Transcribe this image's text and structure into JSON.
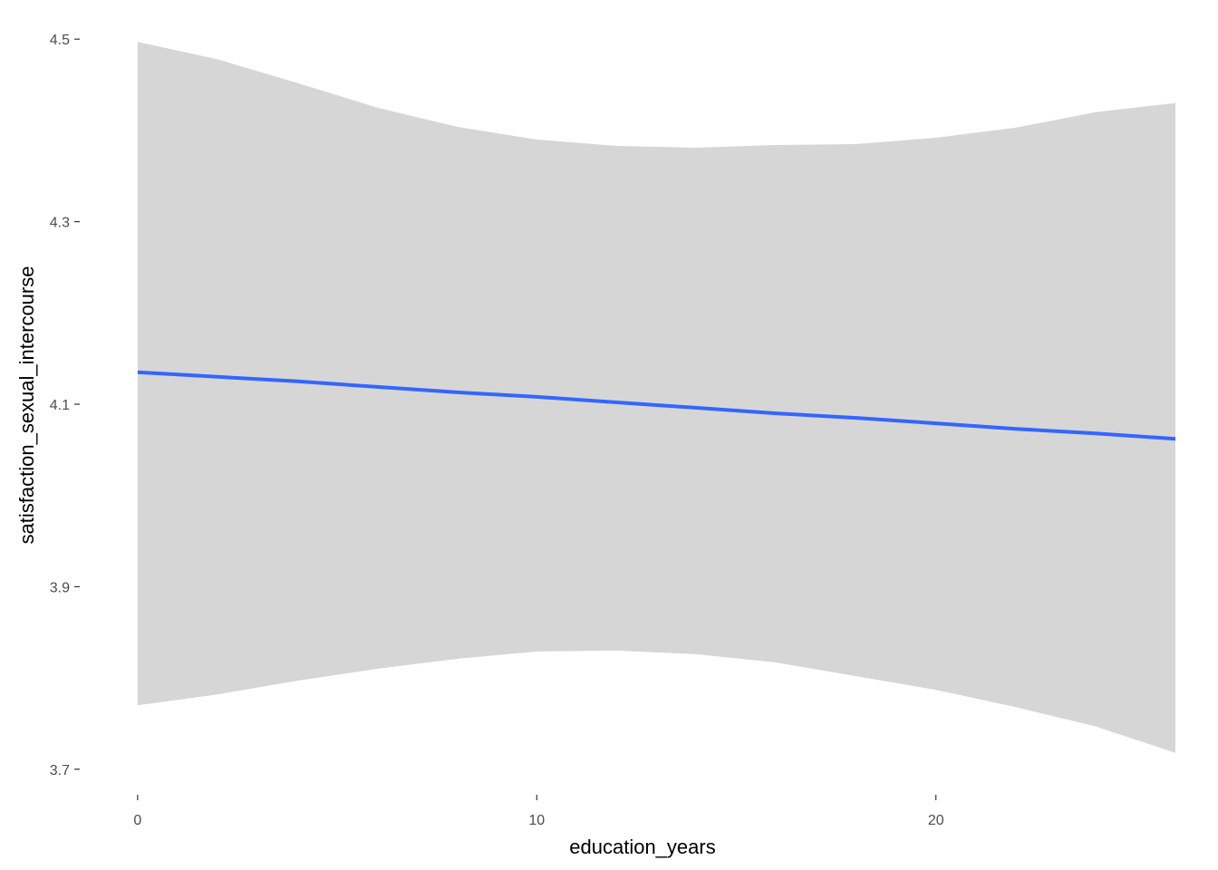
{
  "chart_data": {
    "type": "line",
    "title": "",
    "xlabel": "education_years",
    "ylabel": "satisfaction_sexual_intercourse",
    "xlim": [
      -1.45,
      26.75
    ],
    "ylim": [
      3.672,
      4.528
    ],
    "x_ticks": [
      0,
      10,
      20
    ],
    "y_ticks": [
      3.7,
      3.9,
      4.1,
      4.3,
      4.5
    ],
    "x_tick_labels": [
      "0",
      "10",
      "20"
    ],
    "y_tick_labels": [
      "3.7",
      "3.9",
      "4.1",
      "4.3",
      "4.5"
    ],
    "grid": false,
    "legend": "none",
    "colors": {
      "line": "#3366FF",
      "ribbon": "#D6D6D6",
      "tick": "#333333"
    },
    "series": [
      {
        "x": [
          0,
          2,
          4,
          6,
          8,
          10,
          12,
          14,
          16,
          18,
          20,
          22,
          24,
          26
        ],
        "y": [
          4.135,
          4.13,
          4.125,
          4.119,
          4.113,
          4.108,
          4.102,
          4.096,
          4.09,
          4.085,
          4.079,
          4.073,
          4.068,
          4.062
        ],
        "ymin": [
          3.77,
          3.782,
          3.797,
          3.81,
          3.821,
          3.829,
          3.83,
          3.826,
          3.817,
          3.802,
          3.787,
          3.768,
          3.747,
          3.718
        ],
        "ymax": [
          4.497,
          4.478,
          4.452,
          4.425,
          4.404,
          4.39,
          4.383,
          4.381,
          4.384,
          4.385,
          4.392,
          4.403,
          4.42,
          4.43
        ]
      }
    ]
  }
}
